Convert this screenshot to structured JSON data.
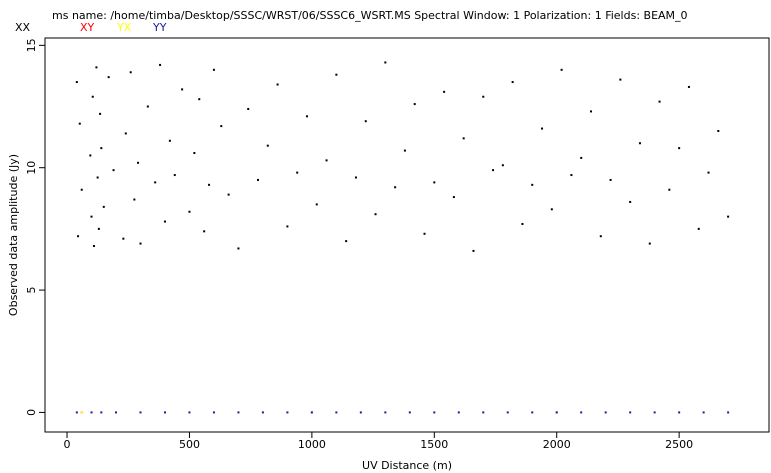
{
  "chart_data": {
    "type": "scatter",
    "title": "ms name: /home/timba/Desktop/SSSC/WRST/06/SSSC6_WSRT.MS Spectral Window: 1 Polarization: 1 Fields: BEAM_0",
    "x_label": "UV Distance (m)",
    "y_label": "Observed data amplitude (Jy)",
    "xlim": [
      -90,
      2867
    ],
    "ylim": [
      -0.8,
      15.3
    ],
    "xticks": [
      0,
      500,
      1000,
      1500,
      2000,
      2500
    ],
    "yticks": [
      0,
      5,
      10,
      15
    ],
    "series": [
      {
        "name": "XX",
        "color": "#000000",
        "x": [
          40,
          45,
          52,
          60,
          95,
          100,
          105,
          110,
          120,
          125,
          130,
          135,
          140,
          150,
          170,
          190,
          230,
          240,
          260,
          275,
          290,
          300,
          330,
          360,
          380,
          400,
          420,
          440,
          470,
          500,
          520,
          540,
          560,
          580,
          600,
          630,
          660,
          700,
          740,
          780,
          820,
          860,
          900,
          940,
          980,
          1020,
          1060,
          1100,
          1140,
          1180,
          1220,
          1260,
          1300,
          1340,
          1380,
          1420,
          1460,
          1500,
          1540,
          1580,
          1620,
          1660,
          1700,
          1740,
          1780,
          1820,
          1860,
          1900,
          1940,
          1980,
          2020,
          2060,
          2100,
          2140,
          2180,
          2220,
          2260,
          2300,
          2340,
          2380,
          2420,
          2460,
          2500,
          2540,
          2580,
          2620,
          2660,
          2700
        ],
        "values": [
          13.5,
          7.2,
          11.8,
          9.1,
          10.5,
          8.0,
          12.9,
          6.8,
          14.1,
          9.6,
          7.5,
          12.2,
          10.8,
          8.4,
          13.7,
          9.9,
          7.1,
          11.4,
          13.9,
          8.7,
          10.2,
          6.9,
          12.5,
          9.4,
          14.2,
          7.8,
          11.1,
          9.7,
          13.2,
          8.2,
          10.6,
          12.8,
          7.4,
          9.3,
          14.0,
          11.7,
          8.9,
          6.7,
          12.4,
          9.5,
          10.9,
          13.4,
          7.6,
          9.8,
          12.1,
          8.5,
          10.3,
          13.8,
          7.0,
          9.6,
          11.9,
          8.1,
          14.3,
          9.2,
          10.7,
          12.6,
          7.3,
          9.4,
          13.1,
          8.8,
          11.2,
          6.6,
          12.9,
          9.9,
          10.1,
          13.5,
          7.7,
          9.3,
          11.6,
          8.3,
          14.0,
          9.7,
          10.4,
          12.3,
          7.2,
          9.5,
          13.6,
          8.6,
          11.0,
          6.9,
          12.7,
          9.1,
          10.8,
          13.3,
          7.5,
          9.8,
          11.5,
          8.0
        ]
      },
      {
        "name": "XY",
        "color": "#ff0000",
        "x": [
          60,
          1000,
          2000
        ],
        "values": [
          0,
          0,
          0
        ]
      },
      {
        "name": "YX",
        "color": "#ffff00",
        "x": [
          60,
          1000,
          2000
        ],
        "values": [
          0,
          0,
          0
        ]
      },
      {
        "name": "YY",
        "color": "#1a1aa0",
        "x": [
          40,
          100,
          140,
          200,
          300,
          400,
          500,
          600,
          700,
          800,
          900,
          1000,
          1100,
          1200,
          1300,
          1400,
          1500,
          1600,
          1700,
          1800,
          1900,
          2000,
          2100,
          2200,
          2300,
          2400,
          2500,
          2600,
          2700
        ],
        "values": [
          0,
          0,
          0,
          0,
          0,
          0,
          0,
          0,
          0,
          0,
          0,
          0,
          0,
          0,
          0,
          0,
          0,
          0,
          0,
          0,
          0,
          0,
          0,
          0,
          0,
          0,
          0,
          0,
          0
        ]
      }
    ]
  }
}
